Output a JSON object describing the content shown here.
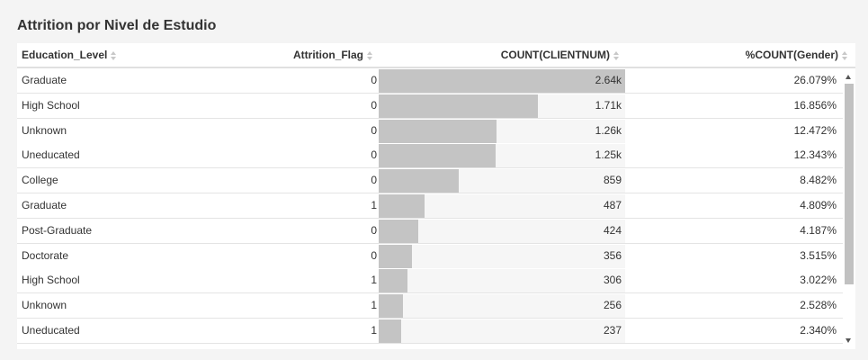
{
  "title": "Attrition por Nivel de Estudio",
  "columns": {
    "education_level": "Education_Level",
    "attrition_flag": "Attrition_Flag",
    "count": "COUNT(CLIENTNUM)",
    "pct": "%COUNT(Gender)"
  },
  "count_max": 2640,
  "rows": [
    {
      "education": "Graduate",
      "flag": "0",
      "count_label": "2.64k",
      "count_value": 2640,
      "pct": "26.079%"
    },
    {
      "education": "High School",
      "flag": "0",
      "count_label": "1.71k",
      "count_value": 1710,
      "pct": "16.856%"
    },
    {
      "education": "Unknown",
      "flag": "0",
      "count_label": "1.26k",
      "count_value": 1260,
      "pct": "12.472%"
    },
    {
      "education": "Uneducated",
      "flag": "0",
      "count_label": "1.25k",
      "count_value": 1250,
      "pct": "12.343%"
    },
    {
      "education": "College",
      "flag": "0",
      "count_label": "859",
      "count_value": 859,
      "pct": "8.482%"
    },
    {
      "education": "Graduate",
      "flag": "1",
      "count_label": "487",
      "count_value": 487,
      "pct": "4.809%"
    },
    {
      "education": "Post-Graduate",
      "flag": "0",
      "count_label": "424",
      "count_value": 424,
      "pct": "4.187%"
    },
    {
      "education": "Doctorate",
      "flag": "0",
      "count_label": "356",
      "count_value": 356,
      "pct": "3.515%"
    },
    {
      "education": "High School",
      "flag": "1",
      "count_label": "306",
      "count_value": 306,
      "pct": "3.022%"
    },
    {
      "education": "Unknown",
      "flag": "1",
      "count_label": "256",
      "count_value": 256,
      "pct": "2.528%"
    },
    {
      "education": "Uneducated",
      "flag": "1",
      "count_label": "237",
      "count_value": 237,
      "pct": "2.340%"
    }
  ],
  "icons": {
    "sort": "sort-icon",
    "scroll_up": "arrow-up-icon",
    "scroll_down": "arrow-down-icon"
  },
  "colors": {
    "bar": "#c4c4c4",
    "bar_track": "#f6f6f6"
  },
  "scroll_position": 0
}
